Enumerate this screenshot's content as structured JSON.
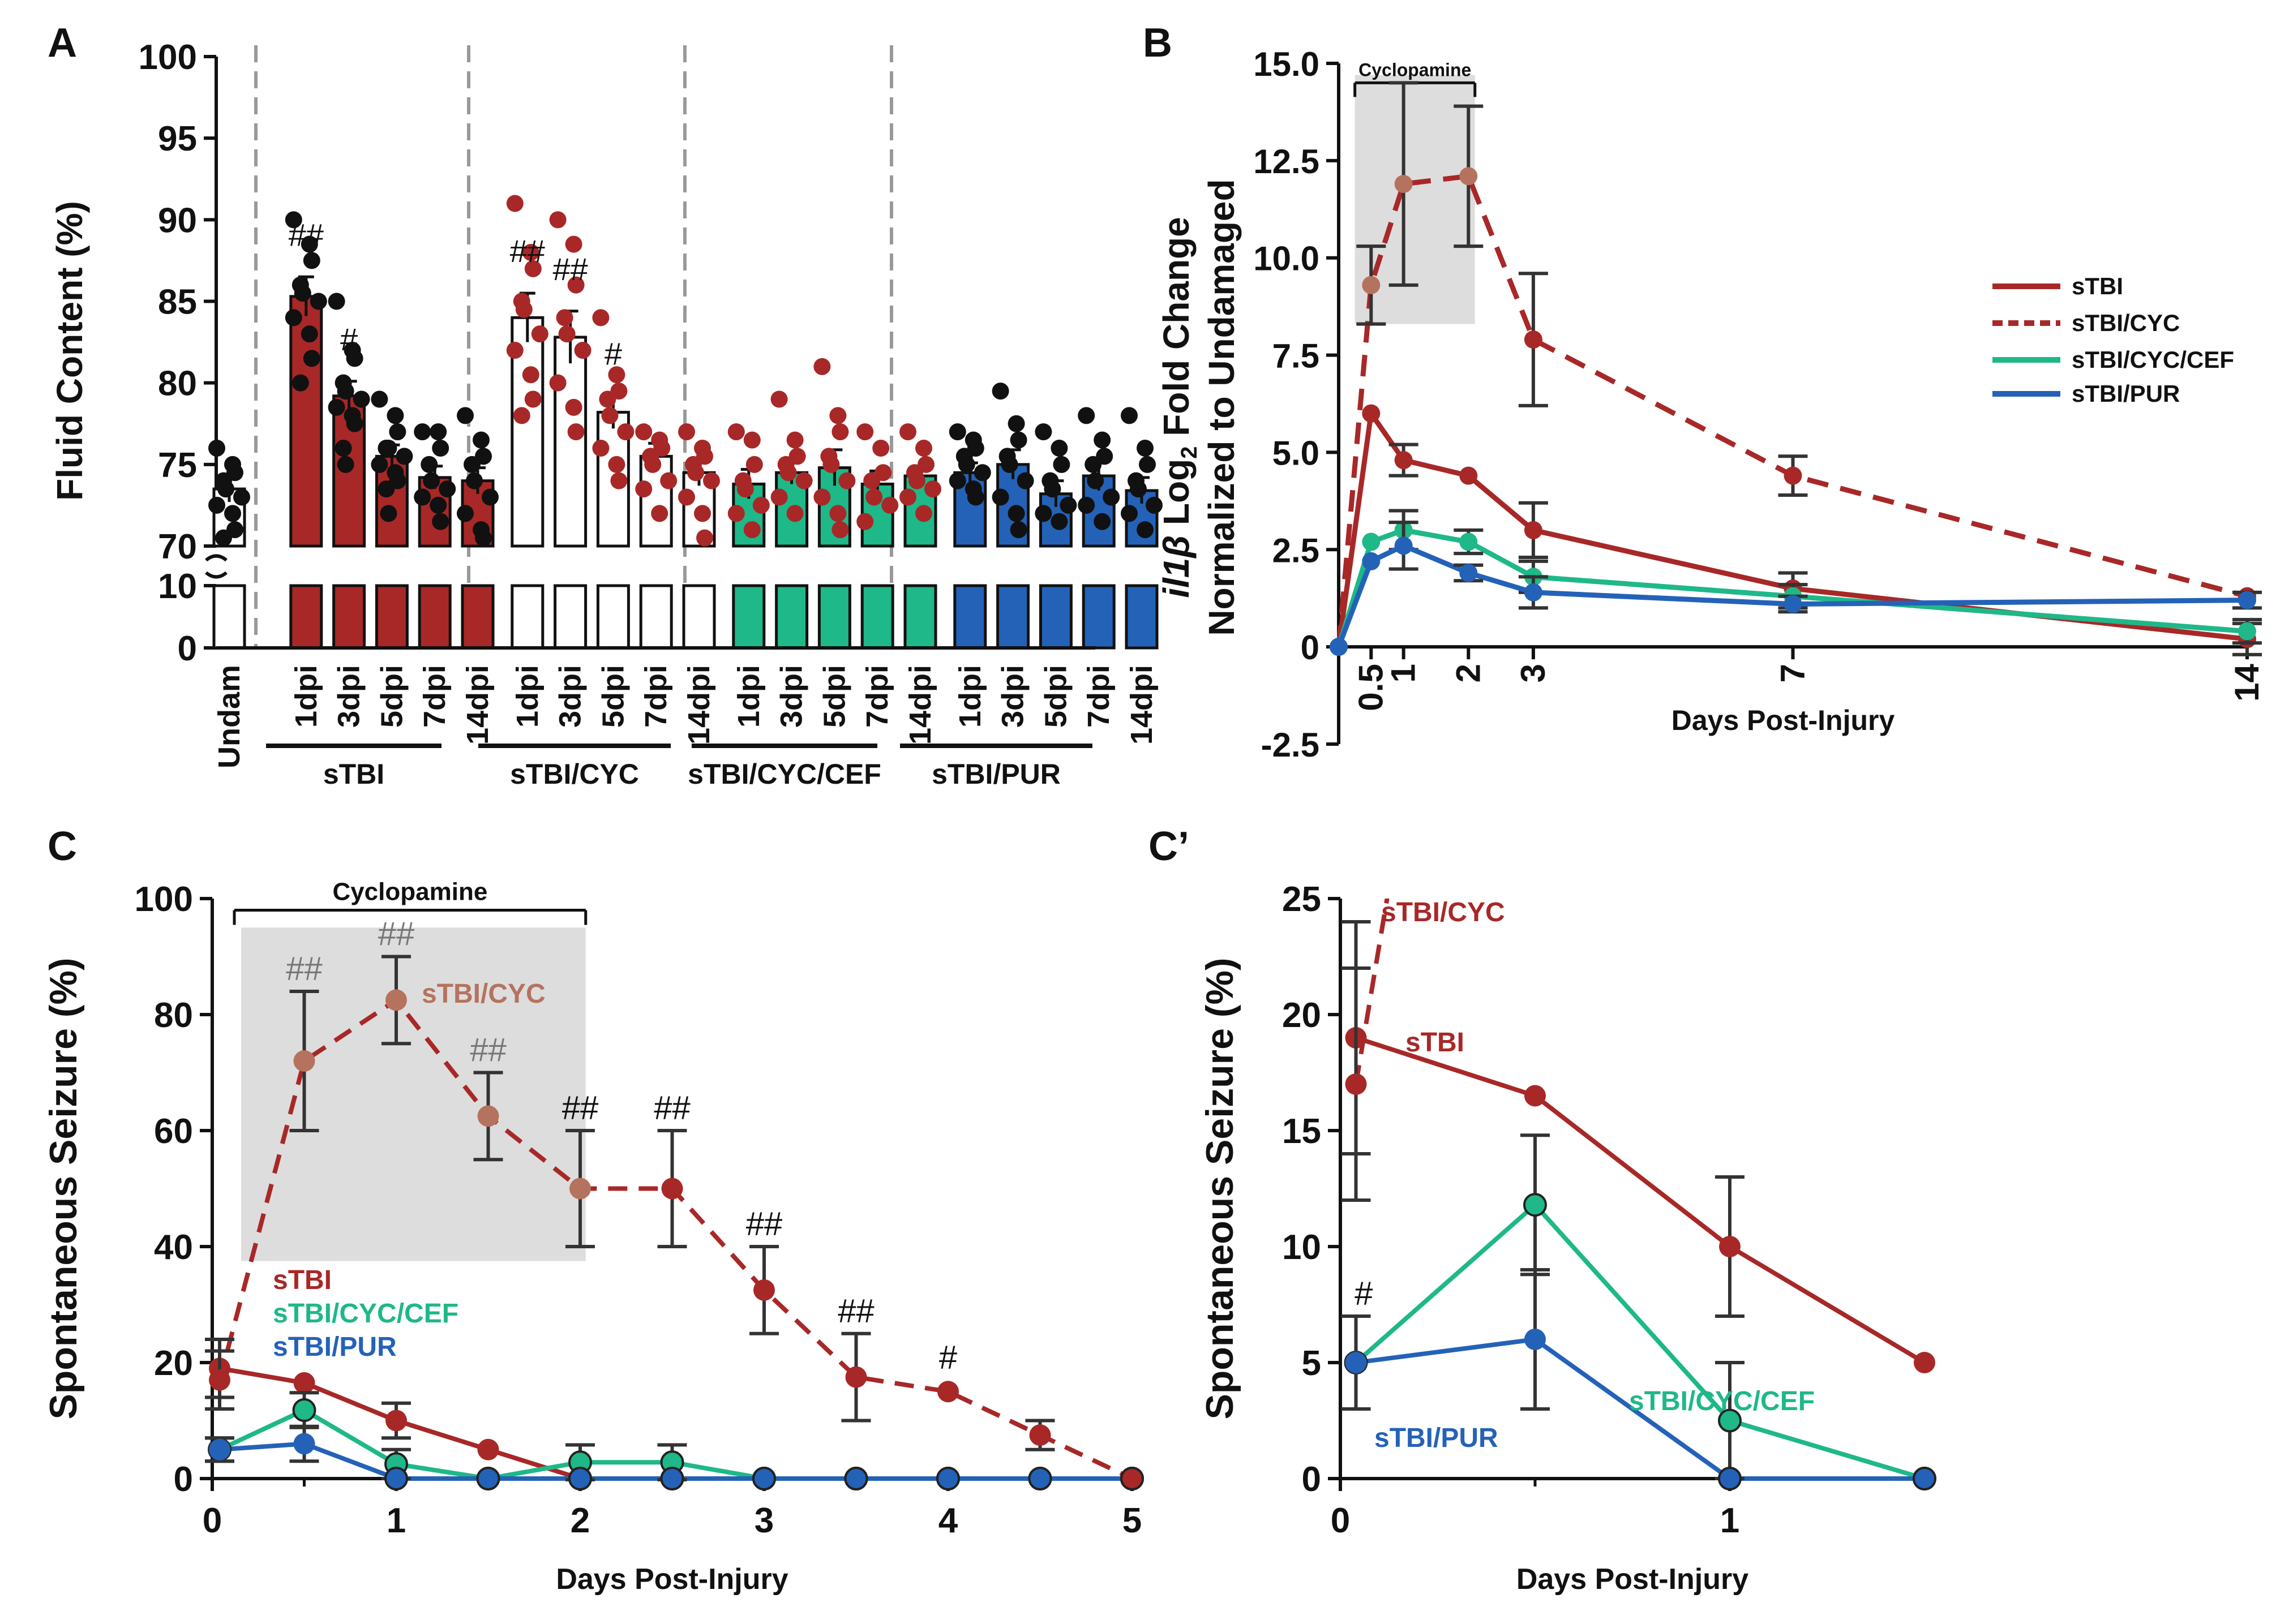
{
  "colors": {
    "red": "#A82828",
    "tan": "#B5735F",
    "green": "#1FB888",
    "blue": "#2462B8",
    "black": "#111111",
    "grey_box": "#DDDDDD"
  },
  "chart_data": [
    {
      "panel": "A",
      "type": "bar",
      "panel_label": "A",
      "ylabel": "Fluid Content (%)",
      "ylim_upper": [
        70,
        100
      ],
      "ylim_lower": [
        0,
        10
      ],
      "upper_ticks": [
        "70",
        "75",
        "80",
        "85",
        "90",
        "95",
        "100"
      ],
      "lower_ticks": [
        "0",
        "10"
      ],
      "bars": [
        {
          "label": "Undam",
          "value": 73.5,
          "err": 0.8,
          "fill": "white",
          "dot": "black",
          "mark": "",
          "points": [
            76,
            75,
            74.5,
            74,
            73.5,
            73,
            72.5,
            72,
            71,
            70.5
          ]
        },
        {
          "label": "1dpi",
          "group": "sTBI",
          "value": 85.3,
          "err": 1.2,
          "fill": "red",
          "dot": "black",
          "mark": "##",
          "points": [
            90,
            88.5,
            87.5,
            86,
            85.5,
            85,
            84,
            83,
            81.5,
            80
          ]
        },
        {
          "label": "3dpi",
          "group": "sTBI",
          "value": 79.2,
          "err": 0.9,
          "fill": "red",
          "dot": "black",
          "mark": "#",
          "points": [
            85,
            82,
            81.5,
            80,
            79.5,
            79,
            78.5,
            78,
            77.5,
            76,
            75
          ]
        },
        {
          "label": "5dpi",
          "group": "sTBI",
          "value": 75.5,
          "err": 0.7,
          "fill": "red",
          "dot": "black",
          "mark": "",
          "points": [
            79,
            78,
            77,
            76,
            76,
            75.5,
            75,
            74.5,
            74,
            73.5,
            72
          ]
        },
        {
          "label": "7dpi",
          "group": "sTBI",
          "value": 74.2,
          "err": 0.7,
          "fill": "red",
          "dot": "black",
          "mark": "",
          "points": [
            77,
            77,
            76,
            75,
            74,
            73.5,
            73,
            72.5,
            71.5
          ]
        },
        {
          "label": "14dpi",
          "group": "sTBI",
          "value": 74.0,
          "err": 0.8,
          "fill": "red",
          "dot": "black",
          "mark": "",
          "points": [
            78,
            76.5,
            75.5,
            75,
            74,
            73,
            72,
            71,
            70.5
          ]
        },
        {
          "label": "1dpi",
          "group": "sTBI/CYC",
          "value": 84.0,
          "err": 1.5,
          "fill": "white",
          "dot": "red",
          "mark": "##",
          "points": [
            91,
            88,
            87,
            85,
            84.5,
            83,
            82,
            80.5,
            79,
            78
          ]
        },
        {
          "label": "3dpi",
          "group": "sTBI/CYC",
          "value": 82.8,
          "err": 1.6,
          "fill": "white",
          "dot": "red",
          "mark": "##",
          "points": [
            90,
            88.5,
            86,
            84,
            83,
            82,
            80,
            78.5,
            77
          ]
        },
        {
          "label": "5dpi",
          "group": "sTBI/CYC",
          "value": 78.2,
          "err": 1.0,
          "fill": "white",
          "dot": "red",
          "mark": "#",
          "points": [
            84,
            80.5,
            79.5,
            79,
            78,
            77,
            76,
            75,
            74
          ]
        },
        {
          "label": "7dpi",
          "group": "sTBI/CYC",
          "value": 75.5,
          "err": 0.8,
          "fill": "white",
          "dot": "red",
          "mark": "",
          "points": [
            77,
            76.5,
            76,
            75.5,
            75,
            74,
            73.5,
            72
          ]
        },
        {
          "label": "14dpi",
          "group": "sTBI/CYC",
          "value": 74.5,
          "err": 0.8,
          "fill": "white",
          "dot": "red",
          "mark": "",
          "points": [
            77,
            76,
            75.5,
            75,
            74.5,
            74,
            73,
            72,
            70.5
          ]
        },
        {
          "label": "1dpi",
          "group": "sTBI/CYC/CEF",
          "value": 73.8,
          "err": 0.9,
          "fill": "green",
          "dot": "red",
          "mark": "",
          "points": [
            77,
            76.5,
            75,
            74,
            73.5,
            72.5,
            72,
            71
          ]
        },
        {
          "label": "3dpi",
          "group": "sTBI/CYC/CEF",
          "value": 74.5,
          "err": 0.7,
          "fill": "green",
          "dot": "red",
          "mark": "",
          "points": [
            79,
            76.5,
            75.5,
            75,
            74.5,
            74,
            73,
            72
          ]
        },
        {
          "label": "5dpi",
          "group": "sTBI/CYC/CEF",
          "value": 74.8,
          "err": 1.1,
          "fill": "green",
          "dot": "red",
          "mark": "",
          "points": [
            81,
            78,
            77,
            75.5,
            75,
            74,
            73,
            72,
            71
          ]
        },
        {
          "label": "7dpi",
          "group": "sTBI/CYC/CEF",
          "value": 73.8,
          "err": 0.8,
          "fill": "green",
          "dot": "red",
          "mark": "",
          "points": [
            77,
            76,
            74.5,
            74,
            73,
            72.5,
            71.5
          ]
        },
        {
          "label": "14dpi",
          "group": "sTBI/CYC/CEF",
          "value": 74.3,
          "err": 0.5,
          "fill": "green",
          "dot": "red",
          "mark": "",
          "points": [
            77,
            76,
            75,
            74.5,
            74,
            73.5,
            73,
            72
          ]
        },
        {
          "label": "1dpi",
          "group": "sTBI/PUR",
          "value": 74.5,
          "err": 0.6,
          "fill": "blue",
          "dot": "black",
          "mark": "",
          "points": [
            77,
            76.5,
            76,
            75.5,
            75,
            74.5,
            74,
            73.5,
            73
          ]
        },
        {
          "label": "3dpi",
          "group": "sTBI/PUR",
          "value": 75.0,
          "err": 0.9,
          "fill": "blue",
          "dot": "black",
          "mark": "",
          "points": [
            79.5,
            77.5,
            76.5,
            75.5,
            75,
            74,
            73,
            72,
            71
          ]
        },
        {
          "label": "5dpi",
          "group": "sTBI/PUR",
          "value": 73.2,
          "err": 0.8,
          "fill": "blue",
          "dot": "black",
          "mark": "",
          "points": [
            77,
            76,
            75,
            74,
            73.5,
            72.5,
            72,
            71.5
          ]
        },
        {
          "label": "7dpi",
          "group": "sTBI/PUR",
          "value": 74.3,
          "err": 0.9,
          "fill": "blue",
          "dot": "black",
          "mark": "",
          "points": [
            78,
            76.5,
            75.5,
            75,
            74,
            73,
            72.5,
            71.5
          ]
        },
        {
          "label": "14dpi",
          "group": "sTBI/PUR",
          "value": 73.4,
          "err": 0.8,
          "fill": "blue",
          "dot": "black",
          "mark": "",
          "points": [
            78,
            76,
            75,
            74,
            73.5,
            72.5,
            72,
            71
          ]
        }
      ],
      "groups": [
        "sTBI",
        "sTBI/CYC",
        "sTBI/CYC/CEF",
        "sTBI/PUR"
      ]
    },
    {
      "panel": "B",
      "type": "line",
      "panel_label": "B",
      "ylabel_italic": "il1β",
      "ylabel_rest": " Log",
      "ylabel_sub": "2",
      "ylabel_tail": " Fold Change",
      "ylabel2": "Normalized to Undamaged",
      "xlabel": "Days Post-Injury",
      "ylim": [
        -2.5,
        15
      ],
      "xlim": [
        0,
        14
      ],
      "yticks": [
        "-2.5",
        "0",
        "2.5",
        "5.0",
        "7.5",
        "10.0",
        "12.5",
        "15.0"
      ],
      "xticks": [
        "0.5",
        "1",
        "2",
        "3",
        "7",
        "14"
      ],
      "shade_label": "Cyclopamine",
      "shade_x": [
        0.25,
        2.1
      ],
      "legend": [
        "sTBI",
        "sTBI/CYC",
        "sTBI/CYC/CEF",
        "sTBI/PUR"
      ],
      "series": [
        {
          "name": "sTBI/CYC",
          "color": "red",
          "dashed": true,
          "x": [
            0,
            0.5,
            1,
            2,
            3,
            7,
            14
          ],
          "y": [
            0,
            9.3,
            11.9,
            12.1,
            7.9,
            4.4,
            1.3
          ],
          "err": [
            0,
            1.0,
            2.6,
            1.8,
            1.7,
            0.5,
            0
          ]
        },
        {
          "name": "sTBI",
          "color": "red",
          "dashed": false,
          "x": [
            0,
            0.5,
            1,
            2,
            3,
            7,
            14
          ],
          "y": [
            0,
            6.0,
            4.8,
            4.4,
            3.0,
            1.5,
            0.2
          ],
          "err": [
            0,
            0,
            0.4,
            0,
            0.7,
            0.4,
            0.4
          ]
        },
        {
          "name": "sTBI/CYC/CEF",
          "color": "green",
          "dashed": false,
          "x": [
            0,
            0.5,
            1,
            2,
            3,
            7,
            14
          ],
          "y": [
            0,
            2.7,
            3.0,
            2.7,
            1.8,
            1.3,
            0.4
          ],
          "err": [
            0,
            0,
            0.5,
            0.3,
            0.4,
            0.3,
            0.3
          ]
        },
        {
          "name": "sTBI/PUR",
          "color": "blue",
          "dashed": false,
          "x": [
            0,
            0.5,
            1,
            2,
            3,
            7,
            14
          ],
          "y": [
            0,
            2.2,
            2.6,
            1.9,
            1.4,
            1.1,
            1.2
          ],
          "err": [
            0,
            0,
            0.6,
            0.2,
            0.4,
            0.2,
            0.2
          ]
        }
      ]
    },
    {
      "panel": "C",
      "type": "line",
      "panel_label": "C",
      "ylabel": "Spontaneous Seizure (%)",
      "xlabel": "Days Post-Injury",
      "ylim": [
        0,
        100
      ],
      "xlim": [
        0,
        5
      ],
      "yticks": [
        "0",
        "20",
        "40",
        "60",
        "80",
        "100"
      ],
      "xticks": [
        "0",
        "1",
        "2",
        "3",
        "4",
        "5"
      ],
      "shade_label": "Cyclopamine",
      "shade_x": [
        0.12,
        2.03
      ],
      "series_labels": {
        "cyc": "sTBI/CYC",
        "stbi": "sTBI",
        "cef": "sTBI/CYC/CEF",
        "pur": "sTBI/PUR"
      },
      "series": [
        {
          "name": "sTBI/CYC",
          "color": "red",
          "dashed": true,
          "x": [
            0.04,
            0.5,
            1,
            1.5,
            2,
            2.5,
            3,
            3.5,
            4,
            4.5,
            5
          ],
          "y": [
            17,
            72,
            82.5,
            62.5,
            50,
            50,
            32.5,
            17.5,
            15,
            7.5,
            0
          ],
          "err": [
            5,
            12,
            7.5,
            7.5,
            10,
            10,
            7.5,
            7.5,
            0,
            2.5,
            0
          ]
        },
        {
          "name": "sTBI",
          "color": "red",
          "dashed": false,
          "x": [
            0.04,
            0.5,
            1,
            1.5,
            2,
            2.5,
            3,
            3.5,
            4,
            4.5,
            5
          ],
          "y": [
            19,
            16.5,
            10,
            5,
            0,
            0,
            0,
            0,
            0,
            0,
            0
          ],
          "err": [
            5,
            0,
            3,
            0,
            0,
            0,
            0,
            0,
            0,
            0,
            0
          ]
        },
        {
          "name": "sTBI/CYC/CEF",
          "color": "green",
          "dashed": false,
          "x": [
            0.04,
            0.5,
            1,
            1.5,
            2,
            2.5,
            3,
            3.5,
            4,
            4.5,
            5
          ],
          "y": [
            5,
            11.8,
            2.5,
            0,
            2.8,
            2.8,
            0,
            0,
            0,
            0,
            0
          ],
          "err": [
            2,
            3,
            2.5,
            0,
            3,
            3,
            0,
            0,
            0,
            0,
            0
          ]
        },
        {
          "name": "sTBI/PUR",
          "color": "blue",
          "dashed": false,
          "x": [
            0.04,
            0.5,
            1,
            1.5,
            2,
            2.5,
            3,
            3.5,
            4,
            4.5,
            5
          ],
          "y": [
            5,
            6,
            0,
            0,
            0,
            0,
            0,
            0,
            0,
            0,
            0
          ],
          "err": [
            2,
            3,
            0,
            0,
            0,
            0,
            0,
            0,
            0,
            0,
            0
          ]
        }
      ],
      "annotations": [
        {
          "x": 0.5,
          "y": 86,
          "text": "##",
          "color": "grey"
        },
        {
          "x": 1.0,
          "y": 92,
          "text": "##",
          "color": "grey"
        },
        {
          "x": 1.5,
          "y": 72,
          "text": "##",
          "color": "grey"
        },
        {
          "x": 2.0,
          "y": 62,
          "text": "##",
          "color": "mixed"
        },
        {
          "x": 2.5,
          "y": 62,
          "text": "##",
          "color": "black"
        },
        {
          "x": 3.0,
          "y": 42,
          "text": "##",
          "color": "black"
        },
        {
          "x": 3.5,
          "y": 27,
          "text": "##",
          "color": "black"
        },
        {
          "x": 4.0,
          "y": 19,
          "text": "#",
          "color": "black"
        }
      ]
    },
    {
      "panel": "C'",
      "type": "line",
      "panel_label": "C’",
      "ylabel": "Spontaneous Seizure (%)",
      "xlabel": "Days Post-Injury",
      "ylim": [
        0,
        25
      ],
      "xlim": [
        0,
        1.5
      ],
      "yticks": [
        "0",
        "5",
        "10",
        "15",
        "20",
        "25"
      ],
      "xticks": [
        "0",
        "1"
      ],
      "series_labels": {
        "cyc": "sTBI/CYC",
        "stbi": "sTBI",
        "cef": "sTBI/CYC/CEF",
        "pur": "sTBI/PUR"
      },
      "series": [
        {
          "name": "sTBI/CYC",
          "color": "red",
          "dashed": true,
          "x": [
            0.04,
            0.13
          ],
          "y": [
            17,
            26
          ],
          "err": [
            5,
            0
          ]
        },
        {
          "name": "sTBI",
          "color": "red",
          "dashed": false,
          "x": [
            0.04,
            0.5,
            1,
            1.5
          ],
          "y": [
            19,
            16.5,
            10,
            5
          ],
          "err": [
            5,
            0,
            3,
            0
          ]
        },
        {
          "name": "sTBI/CYC/CEF",
          "color": "green",
          "dashed": false,
          "x": [
            0.04,
            0.5,
            1,
            1.5
          ],
          "y": [
            5,
            11.8,
            2.5,
            0
          ],
          "err": [
            2,
            3,
            2.5,
            0
          ]
        },
        {
          "name": "sTBI/PUR",
          "color": "blue",
          "dashed": false,
          "x": [
            0.04,
            0.5,
            1,
            1.5
          ],
          "y": [
            5,
            6,
            0,
            0
          ],
          "err": [
            2,
            3,
            0,
            0
          ]
        }
      ],
      "annotations": [
        {
          "x": 0.06,
          "y": 7.5,
          "text": "#",
          "color": "black"
        }
      ]
    }
  ]
}
